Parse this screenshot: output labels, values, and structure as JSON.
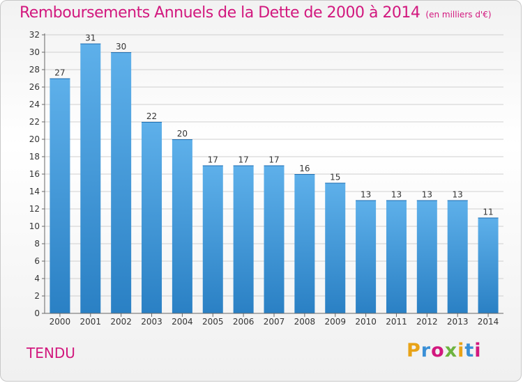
{
  "header": {
    "title": "Remboursements Annuels de la Dette de 2000 à 2014",
    "subtitle": "(en milliers d'€)"
  },
  "footer": {
    "commune": "TENDU",
    "logo_letters": [
      "P",
      "r",
      "o",
      "x",
      "i",
      "t",
      "i"
    ],
    "logo_colors": [
      "#e8a317",
      "#3a8fd6",
      "#d2187e",
      "#6db33f",
      "#e8a317",
      "#3a8fd6",
      "#d2187e"
    ]
  },
  "colors": {
    "title": "#d2187e",
    "bar_top": "#5eb0ea",
    "bar_bottom": "#2a80c4"
  },
  "chart_data": {
    "type": "bar",
    "categories": [
      "2000",
      "2001",
      "2002",
      "2003",
      "2004",
      "2005",
      "2006",
      "2007",
      "2008",
      "2009",
      "2010",
      "2011",
      "2012",
      "2013",
      "2014"
    ],
    "values": [
      27,
      31,
      30,
      22,
      20,
      17,
      17,
      17,
      16,
      15,
      13,
      13,
      13,
      13,
      11
    ],
    "title": "Remboursements Annuels de la Dette de 2000 à 2014",
    "subtitle": "(en milliers d'€)",
    "xlabel": "",
    "ylabel": "",
    "ylim": [
      0,
      32
    ],
    "yticks": [
      0,
      2,
      4,
      6,
      8,
      10,
      12,
      14,
      16,
      18,
      20,
      22,
      24,
      26,
      28,
      30,
      32
    ],
    "grid": true,
    "legend": "none"
  }
}
